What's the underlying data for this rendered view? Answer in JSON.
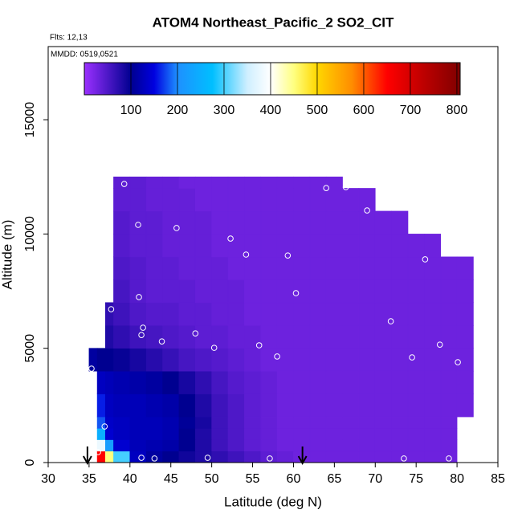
{
  "chart_data": {
    "type": "heatmap",
    "title": "ATOM4 Northeast_Pacific_2 SO2_CIT",
    "annotations": [
      "Flts: 12,13",
      "MMDD: 0519,0521"
    ],
    "xlabel": "Latitude (deg N)",
    "ylabel": "Altitude (m)",
    "xlim": [
      30,
      85
    ],
    "xticks": [
      30,
      35,
      40,
      45,
      50,
      55,
      60,
      65,
      70,
      75,
      80,
      85
    ],
    "ylim": [
      0,
      18200
    ],
    "yticks": [
      0,
      5000,
      10000,
      15000
    ],
    "x": [
      35,
      36,
      37,
      38,
      40,
      42,
      44,
      46,
      48,
      50,
      52,
      54,
      56,
      58,
      60,
      62,
      64,
      66,
      68,
      70,
      72,
      74,
      76,
      78,
      80,
      82
    ],
    "y": [
      0,
      500,
      1000,
      1500,
      2000,
      3000,
      4000,
      5000,
      6000,
      7000,
      8000,
      9000,
      10000,
      11000,
      12000,
      12500
    ],
    "values": [
      [
        null,
        650,
        450,
        300,
        130,
        110,
        100,
        90,
        80,
        70,
        60,
        50,
        40,
        35,
        30,
        30,
        30,
        30,
        30,
        30,
        30,
        30,
        30,
        30,
        null
      ],
      [
        null,
        380,
        220,
        140,
        125,
        120,
        115,
        100,
        80,
        60,
        50,
        40,
        35,
        30,
        30,
        30,
        30,
        30,
        30,
        30,
        30,
        30,
        30,
        30,
        null
      ],
      [
        null,
        250,
        140,
        130,
        125,
        125,
        120,
        100,
        80,
        60,
        50,
        40,
        35,
        30,
        30,
        30,
        30,
        30,
        30,
        30,
        30,
        30,
        30,
        30,
        null
      ],
      [
        null,
        180,
        135,
        130,
        125,
        125,
        120,
        105,
        85,
        60,
        50,
        40,
        35,
        30,
        30,
        30,
        30,
        30,
        30,
        30,
        30,
        30,
        30,
        30,
        null
      ],
      [
        null,
        160,
        130,
        125,
        125,
        120,
        115,
        100,
        80,
        60,
        50,
        40,
        35,
        30,
        30,
        30,
        30,
        30,
        30,
        30,
        30,
        30,
        30,
        30,
        30
      ],
      [
        null,
        130,
        125,
        120,
        115,
        110,
        100,
        85,
        70,
        55,
        45,
        40,
        35,
        30,
        30,
        30,
        30,
        30,
        30,
        30,
        30,
        30,
        30,
        30,
        30
      ],
      [
        110,
        100,
        100,
        95,
        85,
        75,
        65,
        55,
        50,
        45,
        40,
        35,
        30,
        30,
        30,
        30,
        30,
        30,
        30,
        30,
        30,
        30,
        30,
        30,
        30
      ],
      [
        null,
        null,
        80,
        70,
        60,
        55,
        50,
        45,
        40,
        40,
        35,
        35,
        30,
        30,
        30,
        30,
        30,
        30,
        30,
        30,
        30,
        30,
        30,
        30,
        30
      ],
      [
        null,
        null,
        70,
        60,
        50,
        45,
        45,
        40,
        40,
        35,
        35,
        30,
        30,
        30,
        30,
        30,
        30,
        30,
        30,
        30,
        30,
        30,
        30,
        30,
        30
      ],
      [
        null,
        null,
        null,
        55,
        45,
        40,
        40,
        40,
        35,
        35,
        35,
        30,
        30,
        30,
        30,
        30,
        30,
        30,
        30,
        30,
        30,
        30,
        30,
        30,
        30
      ],
      [
        null,
        null,
        null,
        50,
        45,
        40,
        40,
        35,
        35,
        35,
        30,
        30,
        30,
        30,
        30,
        30,
        30,
        30,
        30,
        30,
        30,
        30,
        30,
        30,
        30
      ],
      [
        null,
        null,
        null,
        45,
        40,
        40,
        35,
        35,
        35,
        30,
        30,
        30,
        30,
        30,
        30,
        30,
        30,
        30,
        30,
        30,
        30,
        30,
        30,
        null,
        null
      ],
      [
        null,
        null,
        null,
        45,
        40,
        40,
        35,
        35,
        35,
        30,
        30,
        30,
        30,
        30,
        30,
        30,
        30,
        30,
        30,
        30,
        30,
        null,
        null,
        null,
        null
      ],
      [
        null,
        null,
        null,
        40,
        40,
        35,
        35,
        35,
        30,
        30,
        30,
        30,
        30,
        30,
        30,
        30,
        30,
        30,
        30,
        null,
        null,
        null,
        null,
        null,
        null
      ],
      [
        null,
        null,
        null,
        40,
        40,
        35,
        35,
        30,
        30,
        30,
        30,
        30,
        30,
        30,
        30,
        30,
        30,
        null,
        null,
        null,
        null,
        null,
        null,
        null,
        null
      ]
    ],
    "colorbar": {
      "lim": [
        0,
        807
      ],
      "ticks": [
        100,
        200,
        300,
        400,
        500,
        600,
        700,
        800
      ],
      "stops": [
        [
          0,
          "#9b30ff"
        ],
        [
          100,
          "#000090"
        ],
        [
          150,
          "#0000e0"
        ],
        [
          200,
          "#1e90ff"
        ],
        [
          275,
          "#00bfff"
        ],
        [
          350,
          "#cfefff"
        ],
        [
          400,
          "#ffffff"
        ],
        [
          450,
          "#ffff80"
        ],
        [
          500,
          "#ffd700"
        ],
        [
          575,
          "#ff8c00"
        ],
        [
          650,
          "#ff0000"
        ],
        [
          725,
          "#c00000"
        ],
        [
          807,
          "#800000"
        ]
      ]
    },
    "points": {
      "color": "#ffffff",
      "x": [
        39.3,
        64.0,
        66.4,
        69.0,
        41.0,
        45.7,
        52.3,
        54.2,
        59.3,
        76.1,
        81.8,
        41.1,
        60.3,
        37.7,
        41.6,
        41.4,
        48.0,
        43.9,
        50.3,
        55.8,
        71.9,
        77.9,
        58.0,
        74.5,
        80.1,
        35.3,
        36.9,
        36.1,
        41.4,
        43.0,
        49.5,
        57.1,
        73.5,
        79.0
      ],
      "y": [
        12190,
        12010,
        12050,
        11030,
        10400,
        10260,
        9800,
        9100,
        9060,
        8890,
        9340,
        7240,
        7410,
        6710,
        5900,
        5580,
        5650,
        5300,
        5020,
        5130,
        6180,
        5160,
        4640,
        4600,
        4390,
        4110,
        1580,
        460,
        210,
        180,
        210,
        180,
        180,
        180
      ]
    },
    "markers_x": [
      34.8,
      61.1
    ]
  }
}
